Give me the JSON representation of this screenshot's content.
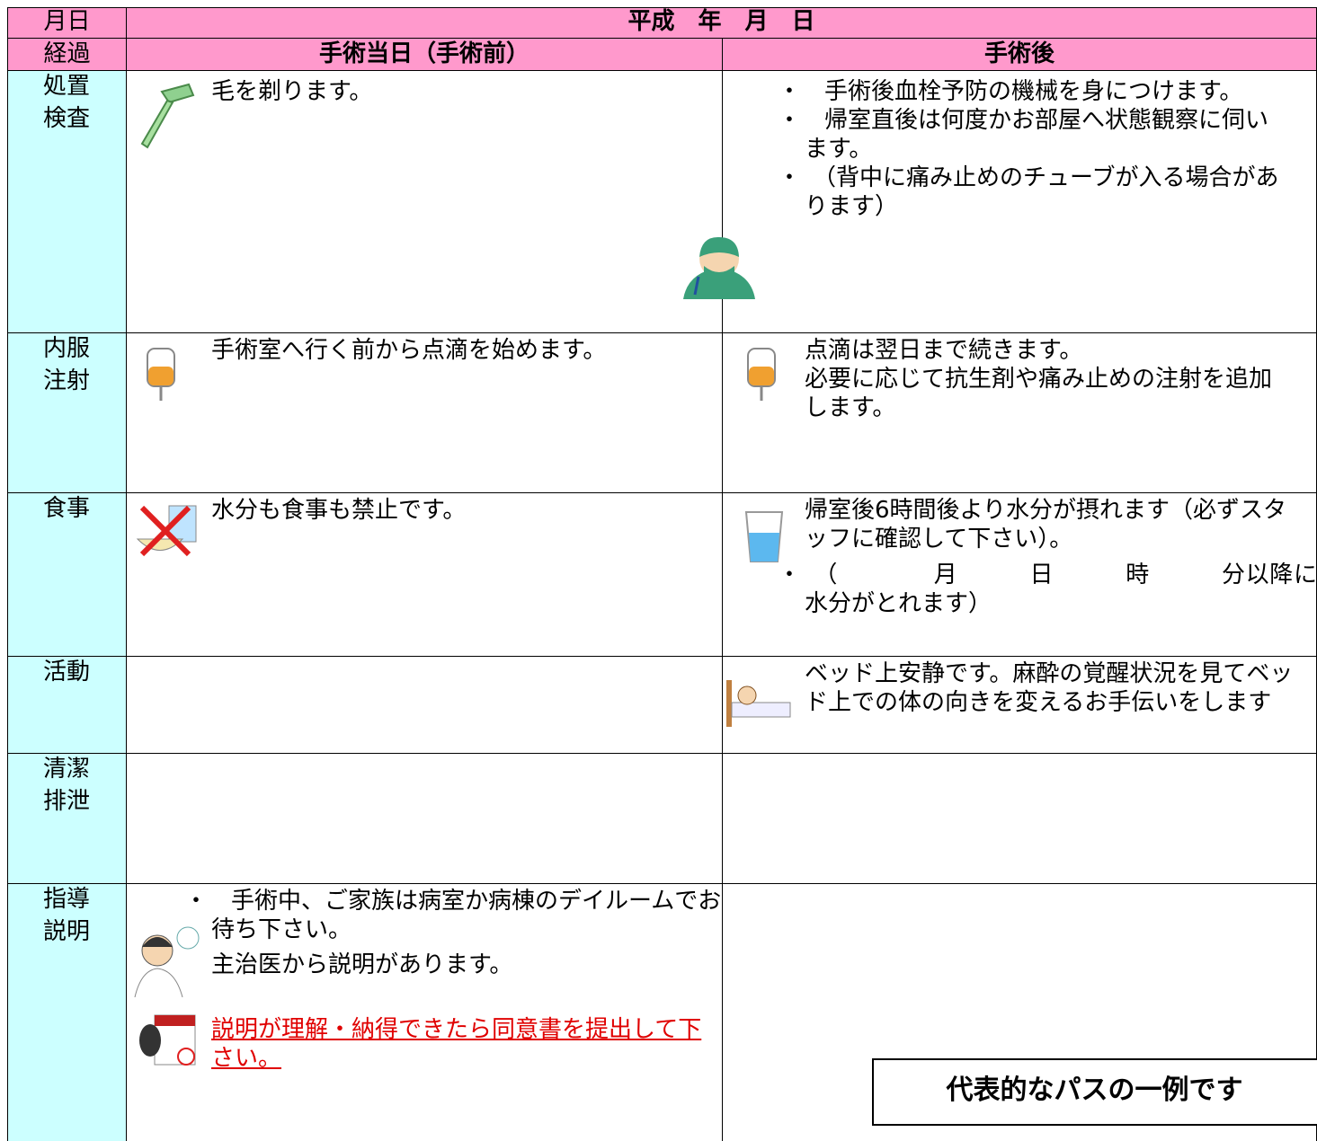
{
  "header": {
    "date_label": "月日",
    "date_value": "平成　年　月　日"
  },
  "phase": {
    "label": "経過",
    "pre": "手術当日（手術前）",
    "post": "手術後"
  },
  "rows": [
    {
      "label": [
        "処置",
        "検査"
      ],
      "pre": [
        "毛を剃ります。"
      ],
      "post": [
        "・　手術後血栓予防の機械を身につけます。",
        "・　帰室直後は何度かお部屋へ状態観察に伺います。",
        "・　（背中に痛み止めのチューブが入る場合があります）"
      ]
    },
    {
      "label": [
        "内服",
        "注射"
      ],
      "pre": [
        "手術室へ行く前から点滴を始めます。"
      ],
      "post": [
        "点滴は翌日まで続きます。",
        "必要に応じて抗生剤や痛み止めの注射を追加します。"
      ]
    },
    {
      "label": [
        "食事"
      ],
      "pre": [
        "水分も食事も禁止です。"
      ],
      "post": [
        "帰室後6時間後より水分が摂れます（必ずスタッフに確認して下さい）。",
        "・　（　　　　月　　　日　　　時　　　分以降に水分がとれます）"
      ]
    },
    {
      "label": [
        "活動"
      ],
      "pre": [],
      "post": [
        "ベッド上安静です。麻酔の覚醒状況を見てベッド上での体の向きを変えるお手伝いをします"
      ]
    },
    {
      "label": [
        "清潔",
        "排泄"
      ],
      "pre": [],
      "post": []
    },
    {
      "label": [
        "指導",
        "説明"
      ],
      "pre": [
        "・　手術中、ご家族は病室か病棟のデイルームでお待ち下さい。",
        "主治医から説明があります。",
        "説明が理解・納得できたら同意書を提出して下さい。"
      ],
      "post": []
    }
  ],
  "note": "代表的なパスの一例です"
}
